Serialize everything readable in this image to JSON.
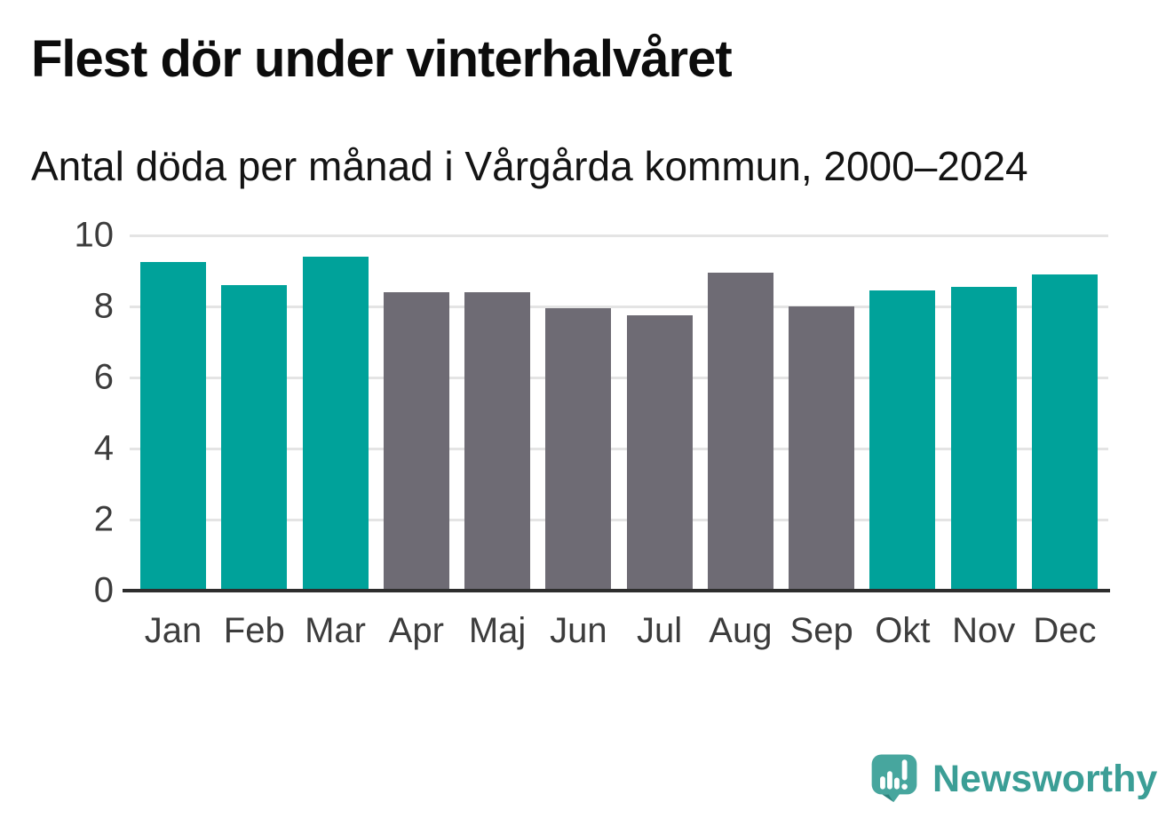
{
  "chart_data": {
    "type": "bar",
    "title": "Flest dör under vinterhalvåret",
    "subtitle": "Antal döda per månad i Vårgårda kommun, 2000–2024",
    "categories": [
      "Jan",
      "Feb",
      "Mar",
      "Apr",
      "Maj",
      "Jun",
      "Jul",
      "Aug",
      "Sep",
      "Okt",
      "Nov",
      "Dec"
    ],
    "values": [
      9.25,
      8.6,
      9.4,
      8.4,
      8.4,
      7.95,
      7.75,
      8.95,
      8.0,
      8.45,
      8.55,
      8.9
    ],
    "bar_colors": [
      "#00a29a",
      "#00a29a",
      "#00a29a",
      "#6e6b74",
      "#6e6b74",
      "#6e6b74",
      "#6e6b74",
      "#6e6b74",
      "#6e6b74",
      "#00a29a",
      "#00a29a",
      "#00a29a"
    ],
    "xlabel": "",
    "ylabel": "",
    "ylim": [
      0,
      10
    ],
    "yticks": [
      0,
      2,
      4,
      6,
      8,
      10
    ],
    "grid": "horizontal",
    "legend": "none"
  },
  "colors": {
    "background": "#ffffff",
    "bar_teal": "#00a29a",
    "bar_gray": "#6e6b74",
    "gridline": "#e4e4e4",
    "axis_line": "#2d2d2d",
    "tick_text": "#3c3c3c",
    "title_text": "#0c0c0c",
    "brand_teal": "#3b9e96",
    "logo_bubble_teal": "#47a69e",
    "logo_tail_shadow": "#2c837d"
  },
  "footer": {
    "brand": "Newsworthy",
    "logo_icon": "newsworthy-speech-bubble-bar-chart-icon"
  }
}
